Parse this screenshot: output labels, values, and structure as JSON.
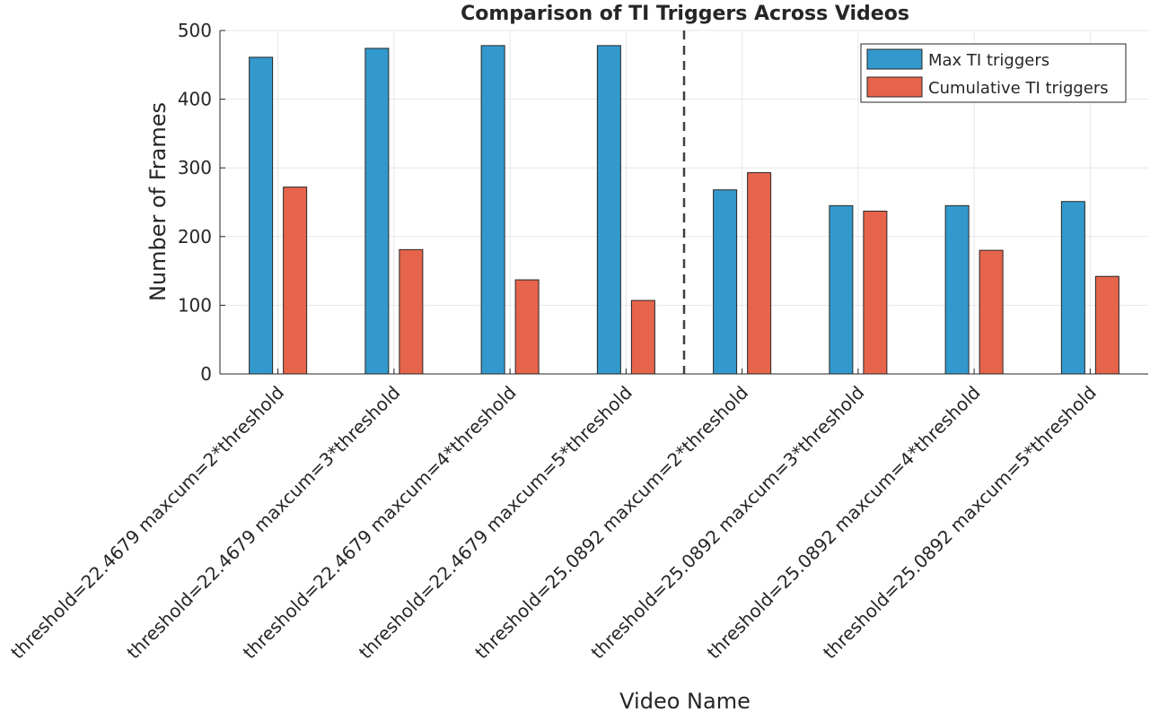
{
  "chart_data": {
    "type": "bar",
    "title": "Comparison of TI Triggers Across Videos",
    "xlabel": "Video Name",
    "ylabel": "Number of Frames",
    "ylim": [
      0,
      500
    ],
    "yticks": [
      "0",
      "100",
      "200",
      "300",
      "400",
      "500"
    ],
    "grid": true,
    "legend_position": "top-right",
    "categories": [
      "threshold=22.4679 maxcum=2*threshold",
      "threshold=22.4679 maxcum=3*threshold",
      "threshold=22.4679 maxcum=4*threshold",
      "threshold=22.4679 maxcum=5*threshold",
      "threshold=25.0892 maxcum=2*threshold",
      "threshold=25.0892 maxcum=3*threshold",
      "threshold=25.0892 maxcum=4*threshold",
      "threshold=25.0892 maxcum=5*threshold"
    ],
    "series": [
      {
        "name": "Max TI triggers",
        "color": "#3399cc",
        "values": [
          461,
          474,
          478,
          478,
          268,
          245,
          245,
          251
        ]
      },
      {
        "name": "Cumulative TI triggers",
        "color": "#e5644b",
        "values": [
          272,
          181,
          137,
          107,
          293,
          237,
          180,
          142
        ]
      }
    ],
    "divider_between_categories": [
      3,
      4
    ]
  }
}
